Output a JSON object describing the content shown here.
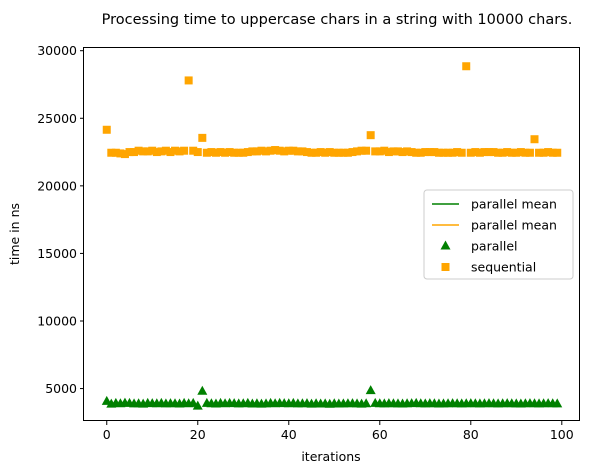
{
  "chart_data": {
    "type": "scatter",
    "title": "Processing time to uppercase chars in a string with 10000 chars.",
    "xlabel": "iterations",
    "ylabel": "time in ns",
    "xlim": [
      -5,
      104
    ],
    "ylim": [
      2600,
      30200
    ],
    "xticks": [
      0,
      20,
      40,
      60,
      80,
      100
    ],
    "yticks": [
      5000,
      10000,
      15000,
      20000,
      25000,
      30000
    ],
    "grid": false,
    "legend_position": "center-right",
    "series": [
      {
        "name": "parallel mean",
        "kind": "line",
        "color": "#008000",
        "value": 3900
      },
      {
        "name": "parallel mean",
        "kind": "line",
        "color": "#ffa500",
        "value": 22500
      },
      {
        "name": "parallel",
        "kind": "scatter",
        "marker": "triangle",
        "color": "#008000",
        "x": [
          0,
          1,
          2,
          3,
          4,
          5,
          6,
          7,
          8,
          9,
          10,
          11,
          12,
          13,
          14,
          15,
          16,
          17,
          18,
          19,
          20,
          21,
          22,
          23,
          24,
          25,
          26,
          27,
          28,
          29,
          30,
          31,
          32,
          33,
          34,
          35,
          36,
          37,
          38,
          39,
          40,
          41,
          42,
          43,
          44,
          45,
          46,
          47,
          48,
          49,
          50,
          51,
          52,
          53,
          54,
          55,
          56,
          57,
          58,
          59,
          60,
          61,
          62,
          63,
          64,
          65,
          66,
          67,
          68,
          69,
          70,
          71,
          72,
          73,
          74,
          75,
          76,
          77,
          78,
          79,
          80,
          81,
          82,
          83,
          84,
          85,
          86,
          87,
          88,
          89,
          90,
          91,
          92,
          93,
          94,
          95,
          96,
          97,
          98,
          99
        ],
        "y": [
          4050,
          3850,
          3900,
          3880,
          3920,
          3900,
          3870,
          3880,
          3850,
          3900,
          3890,
          3880,
          3900,
          3870,
          3890,
          3880,
          3860,
          3900,
          3880,
          3900,
          3700,
          4800,
          3900,
          3880,
          3860,
          3900,
          3880,
          3900,
          3890,
          3870,
          3880,
          3900,
          3860,
          3880,
          3850,
          3870,
          3900,
          3880,
          3900,
          3890,
          3880,
          3900,
          3870,
          3880,
          3890,
          3850,
          3880,
          3860,
          3870,
          3840,
          3880,
          3860,
          3870,
          3880,
          3890,
          3870,
          3850,
          3880,
          4850,
          3900,
          3880,
          3870,
          3890,
          3880,
          3870,
          3860,
          3880,
          3890,
          3900,
          3880,
          3870,
          3890,
          3880,
          3860,
          3870,
          3880,
          3890,
          3880,
          3870,
          3880,
          3890,
          3880,
          3870,
          3880,
          3890,
          3880,
          3870,
          3880,
          3890,
          3880,
          3870,
          3860,
          3880,
          3890,
          3880,
          3870,
          3880,
          3890,
          3880,
          3870
        ]
      },
      {
        "name": "sequential",
        "kind": "scatter",
        "marker": "square",
        "color": "#ffa500",
        "x": [
          0,
          1,
          2,
          3,
          4,
          5,
          6,
          7,
          8,
          9,
          10,
          11,
          12,
          13,
          14,
          15,
          16,
          17,
          18,
          19,
          20,
          21,
          22,
          23,
          24,
          25,
          26,
          27,
          28,
          29,
          30,
          31,
          32,
          33,
          34,
          35,
          36,
          37,
          38,
          39,
          40,
          41,
          42,
          43,
          44,
          45,
          46,
          47,
          48,
          49,
          50,
          51,
          52,
          53,
          54,
          55,
          56,
          57,
          58,
          59,
          60,
          61,
          62,
          63,
          64,
          65,
          66,
          67,
          68,
          69,
          70,
          71,
          72,
          73,
          74,
          75,
          76,
          77,
          78,
          79,
          80,
          81,
          82,
          83,
          84,
          85,
          86,
          87,
          88,
          89,
          90,
          91,
          92,
          93,
          94,
          95,
          96,
          97,
          98,
          99
        ],
        "y": [
          24150,
          22450,
          22450,
          22400,
          22350,
          22500,
          22500,
          22600,
          22550,
          22550,
          22600,
          22500,
          22550,
          22600,
          22500,
          22600,
          22550,
          22600,
          27800,
          22600,
          22500,
          23550,
          22450,
          22500,
          22450,
          22500,
          22450,
          22500,
          22450,
          22450,
          22450,
          22500,
          22550,
          22550,
          22600,
          22550,
          22600,
          22650,
          22600,
          22550,
          22600,
          22600,
          22550,
          22550,
          22500,
          22450,
          22450,
          22500,
          22450,
          22500,
          22450,
          22450,
          22450,
          22450,
          22500,
          22550,
          22600,
          22600,
          23750,
          22550,
          22550,
          22600,
          22500,
          22550,
          22550,
          22500,
          22550,
          22500,
          22450,
          22450,
          22500,
          22500,
          22500,
          22450,
          22450,
          22450,
          22450,
          22500,
          22450,
          28850,
          22450,
          22500,
          22450,
          22500,
          22500,
          22500,
          22450,
          22450,
          22500,
          22450,
          22450,
          22500,
          22450,
          22450,
          23450,
          22450,
          22450,
          22500,
          22450,
          22450
        ]
      }
    ]
  }
}
